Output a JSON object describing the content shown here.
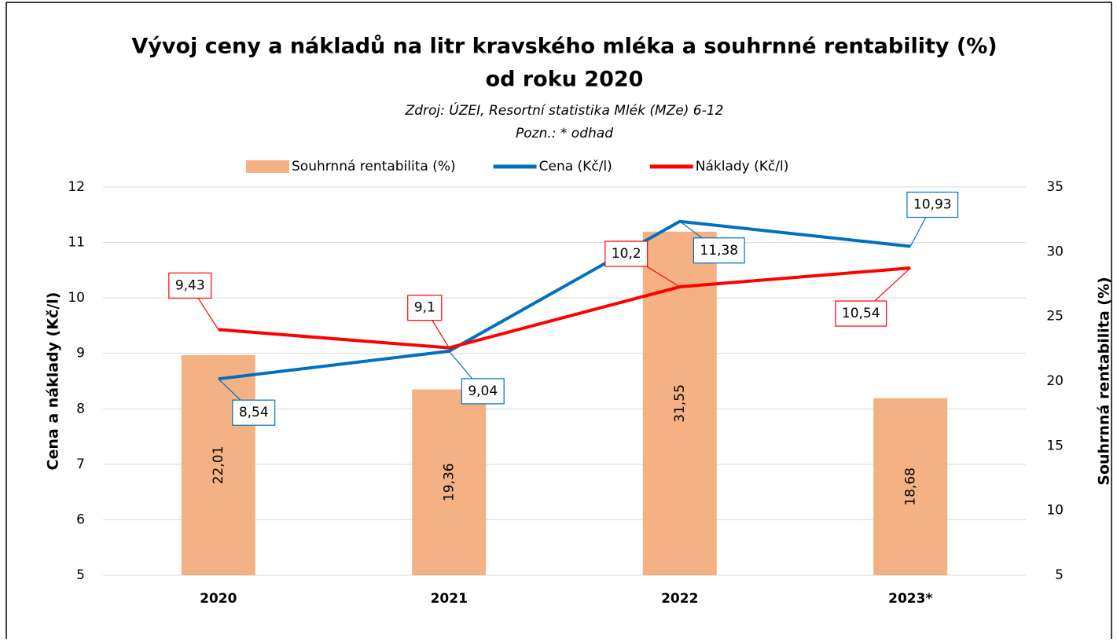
{
  "chart_data": {
    "type": "combo",
    "title": [
      "Vývoj ceny a nákladů na litr kravského mléka a souhrnné rentability (%)",
      "od roku 2020"
    ],
    "subtitle": "Zdroj: ÚZEI, Resortní statistika Mlék (MZe) 6-12",
    "note": "Pozn.: * odhad",
    "y_label": "Cena a náklady (Kč/l)",
    "y2_label": "Souhrnná rentabilita (%)",
    "categories": [
      "2020",
      "2021",
      "2022",
      "2023*"
    ],
    "series": [
      {
        "name": "Souhrnná rentabilita (%)",
        "type": "bar",
        "axis": "y2",
        "color": "#f4b183",
        "values": [
          22.01,
          19.36,
          31.55,
          18.68
        ],
        "value_labels": [
          "22,01",
          "19,36",
          "31,55",
          "18,68"
        ]
      },
      {
        "name": "Cena (Kč/l)",
        "type": "line",
        "color": "#0070c0",
        "values": [
          8.54,
          9.04,
          11.38,
          10.93
        ],
        "value_labels": [
          "8,54",
          "9,04",
          "11,38",
          "10,93"
        ]
      },
      {
        "name": "Náklady (Kč/l)",
        "type": "line",
        "color": "#ff0000",
        "values": [
          9.43,
          9.1,
          10.2,
          10.54
        ],
        "value_labels": [
          "9,43",
          "9,1",
          "10,2",
          "10,54"
        ]
      }
    ],
    "ylim": [
      5,
      12
    ],
    "yticks": [
      5,
      6,
      7,
      8,
      9,
      10,
      11,
      12
    ],
    "y2lim": [
      5,
      35
    ],
    "y2ticks": [
      5,
      10,
      15,
      20,
      25,
      30,
      35
    ],
    "grid": true,
    "legend": "top"
  }
}
